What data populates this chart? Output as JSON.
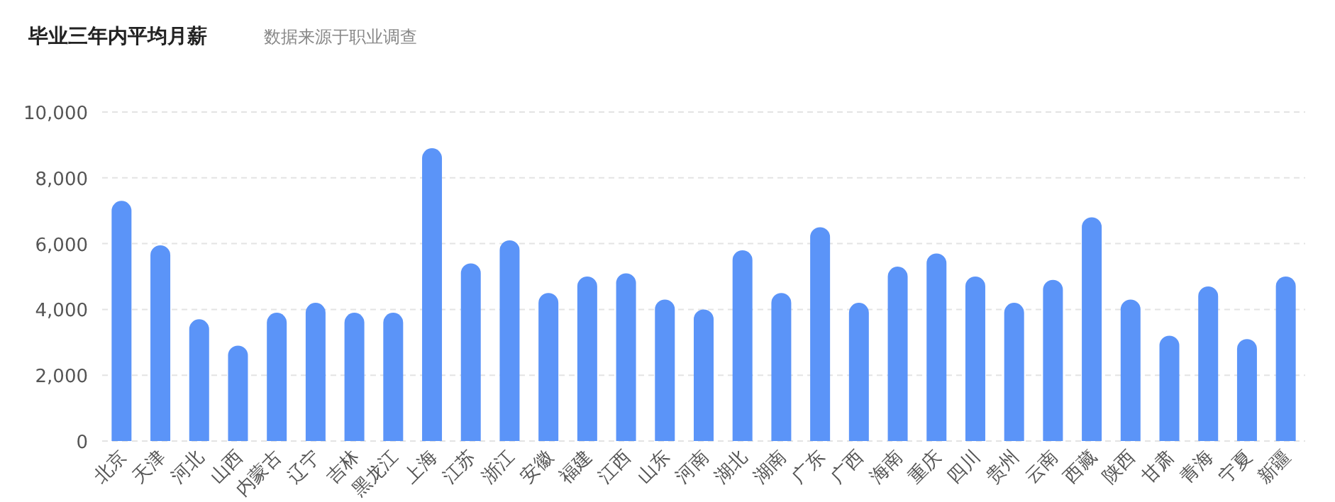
{
  "chart_data": {
    "type": "bar",
    "title": "毕业三年内平均月薪",
    "subtitle": "数据来源于职业调查",
    "categories": [
      "北京",
      "天津",
      "河北",
      "山西",
      "内蒙古",
      "辽宁",
      "吉林",
      "黑龙江",
      "上海",
      "江苏",
      "浙江",
      "安徽",
      "福建",
      "江西",
      "山东",
      "河南",
      "湖北",
      "湖南",
      "广东",
      "广西",
      "海南",
      "重庆",
      "四川",
      "贵州",
      "云南",
      "西藏",
      "陕西",
      "甘肃",
      "青海",
      "宁夏",
      "新疆"
    ],
    "values": [
      7300,
      5950,
      3700,
      2900,
      3900,
      4200,
      3900,
      3900,
      8900,
      5400,
      6100,
      4500,
      5000,
      5100,
      4300,
      4000,
      5800,
      4500,
      6500,
      4200,
      5300,
      5700,
      5000,
      4200,
      4900,
      6800,
      4300,
      3200,
      4700,
      3100,
      5000
    ],
    "color": "#5b94f8",
    "ylim": [
      0,
      10000
    ],
    "yticks": [
      {
        "value": 0,
        "label": "0"
      },
      {
        "value": 2000,
        "label": "2,000"
      },
      {
        "value": 4000,
        "label": "4,000"
      },
      {
        "value": 6000,
        "label": "6,000"
      },
      {
        "value": 8000,
        "label": "8,000"
      },
      {
        "value": 10000,
        "label": "10,000"
      }
    ],
    "grid": "y"
  }
}
